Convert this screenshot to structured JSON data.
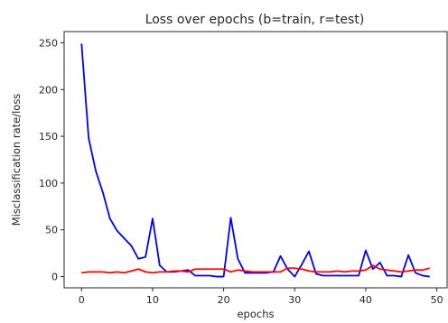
{
  "chart_data": {
    "type": "line",
    "title": "Loss over epochs (b=train, r=test)",
    "xlabel": "epochs",
    "ylabel": "Misclassification rate/loss",
    "xlim": [
      -2.45,
      51.45
    ],
    "ylim": [
      -12,
      262
    ],
    "x_ticks": [
      0,
      10,
      20,
      30,
      40,
      50
    ],
    "y_ticks": [
      0,
      50,
      100,
      150,
      200,
      250
    ],
    "x_tick_labels": [
      "0",
      "10",
      "20",
      "30",
      "40",
      "50"
    ],
    "y_tick_labels": [
      "0",
      "50",
      "100",
      "150",
      "200",
      "250"
    ],
    "grid": false,
    "series": [
      {
        "color": "#0000ff",
        "x": [
          0,
          1,
          2,
          3,
          4,
          5,
          6,
          7,
          8,
          9,
          10,
          11,
          12,
          13,
          14,
          15,
          16,
          17,
          18,
          19,
          20,
          21,
          22,
          23,
          24,
          25,
          26,
          27,
          28,
          29,
          30,
          31,
          32,
          33,
          34,
          35,
          36,
          37,
          38,
          39,
          40,
          41,
          42,
          43,
          44,
          45,
          46,
          47,
          48,
          49
        ],
        "values": [
          249,
          148,
          113,
          90,
          62,
          49,
          41,
          33,
          19,
          21,
          62,
          12,
          5,
          5,
          6,
          7,
          1,
          1,
          1,
          0,
          0,
          63,
          19,
          4,
          4,
          4,
          4,
          5,
          22,
          8,
          0,
          13,
          27,
          3,
          1,
          1,
          1,
          1,
          1,
          1,
          28,
          8,
          15,
          1,
          1,
          0,
          23,
          4,
          1,
          0
        ]
      },
      {
        "color": "#ff0000",
        "x": [
          0,
          1,
          2,
          3,
          4,
          5,
          6,
          7,
          8,
          9,
          10,
          11,
          12,
          13,
          14,
          15,
          16,
          17,
          18,
          19,
          20,
          21,
          22,
          23,
          24,
          25,
          26,
          27,
          28,
          29,
          30,
          31,
          32,
          33,
          34,
          35,
          36,
          37,
          38,
          39,
          40,
          41,
          42,
          43,
          44,
          45,
          46,
          47,
          48,
          49
        ],
        "values": [
          4,
          5,
          5,
          5,
          4,
          5,
          4,
          6,
          8,
          5,
          4,
          5,
          5,
          6,
          6,
          5,
          8,
          8,
          8,
          8,
          8,
          5,
          7,
          6,
          5,
          5,
          5,
          5,
          5,
          9,
          9,
          8,
          6,
          5,
          5,
          5,
          6,
          5,
          6,
          6,
          7,
          12,
          8,
          7,
          6,
          5,
          6,
          7,
          7,
          9
        ]
      }
    ]
  }
}
